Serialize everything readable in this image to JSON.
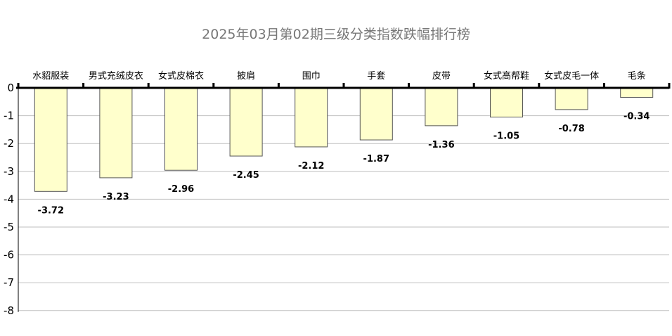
{
  "chart_data": {
    "type": "bar",
    "title": "2025年03月第02期三级分类指数跌幅排行榜",
    "categories": [
      "水貂服装",
      "男式充绒皮衣",
      "女式皮棉衣",
      "披肩",
      "围巾",
      "手套",
      "皮带",
      "女式高帮鞋",
      "女式皮毛一体",
      "毛条"
    ],
    "values": [
      -3.72,
      -3.23,
      -2.96,
      -2.45,
      -2.12,
      -1.87,
      -1.36,
      -1.05,
      -0.78,
      -0.34
    ],
    "data_labels": [
      "-3.72",
      "-3.23",
      "-2.96",
      "-2.45",
      "-2.12",
      "-1.87",
      "-1.36",
      "-1.05",
      "-0.78",
      "-0.34"
    ],
    "yticks": [
      "0",
      "-1",
      "-2",
      "-3",
      "-4",
      "-5",
      "-6",
      "-7",
      "-8"
    ],
    "ylim": [
      -8,
      0
    ],
    "xlabel": "",
    "ylabel": "",
    "grid": true,
    "legend": "none",
    "colors": {
      "bar_fill": "#ffffcc",
      "bar_stroke": "#555555",
      "grid": "#bfbfbf",
      "axis": "#000000",
      "title": "#777777"
    }
  }
}
